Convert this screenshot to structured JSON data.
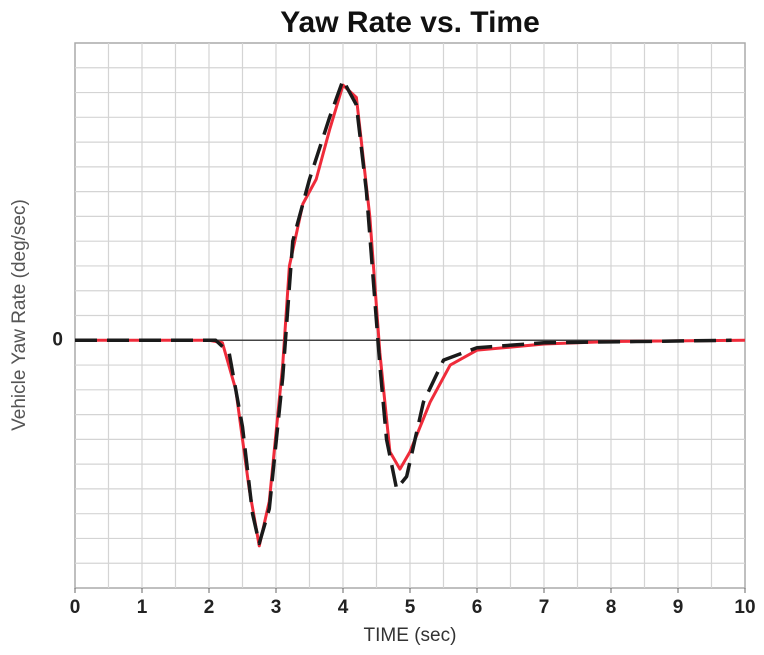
{
  "chart_data": {
    "type": "line",
    "title": "Yaw Rate vs. Time",
    "x_label": "TIME (sec)",
    "y_label": "Vehicle Yaw Rate (deg/sec)",
    "xlim": [
      0,
      10
    ],
    "xticks": [
      0,
      1,
      2,
      3,
      4,
      5,
      6,
      7,
      8,
      9,
      10
    ],
    "ylim": [
      -10,
      12
    ],
    "yticks": [
      0
    ],
    "grid": true,
    "xgrid": [
      0.5,
      1,
      1.5,
      2,
      2.5,
      3,
      3.5,
      4,
      4.5,
      5,
      5.5,
      6,
      6.5,
      7,
      7.5,
      8,
      8.5,
      9,
      9.5
    ],
    "ygrid": [
      -9,
      -8,
      -7,
      -6,
      -5,
      -4,
      -3,
      -2,
      -1,
      1,
      2,
      3,
      4,
      5,
      6,
      7,
      8,
      9,
      10,
      11
    ],
    "series": [
      {
        "color": "#ef2b3a",
        "dash": false,
        "x": [
          0,
          2,
          2.2,
          2.4,
          2.6,
          2.75,
          2.9,
          3.1,
          3.2,
          3.4,
          3.6,
          3.8,
          4.0,
          4.2,
          4.4,
          4.55,
          4.7,
          4.85,
          5.0,
          5.3,
          5.6,
          6.0,
          7,
          8,
          10
        ],
        "values": [
          0,
          0,
          -0.1,
          -2,
          -6,
          -8.3,
          -6.5,
          -1,
          3,
          5.5,
          6.5,
          8.5,
          10.3,
          9.8,
          5,
          -0.5,
          -4.5,
          -5.2,
          -4.5,
          -2.5,
          -1,
          -0.4,
          -0.15,
          -0.05,
          0
        ]
      },
      {
        "color": "#1a1a1a",
        "dash": true,
        "x": [
          0,
          2.1,
          2.3,
          2.5,
          2.65,
          2.75,
          2.9,
          3.1,
          3.25,
          3.5,
          3.8,
          4.0,
          4.2,
          4.35,
          4.55,
          4.65,
          4.8,
          4.95,
          5.2,
          5.5,
          6,
          7,
          9.8
        ],
        "values": [
          0,
          0,
          -0.5,
          -3.5,
          -7,
          -8.2,
          -6.8,
          -1.5,
          4,
          6.5,
          9,
          10.5,
          9.5,
          6,
          -1,
          -4,
          -6,
          -5.5,
          -2.5,
          -0.8,
          -0.3,
          -0.1,
          0
        ]
      }
    ]
  }
}
